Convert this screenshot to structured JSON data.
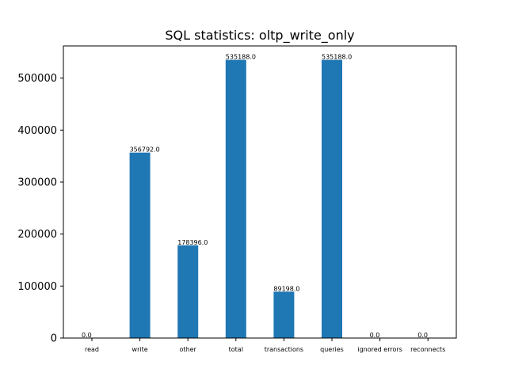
{
  "chart_data": {
    "type": "bar",
    "title": "SQL statistics: oltp_write_only",
    "xlabel": "",
    "ylabel": "",
    "categories": [
      "read",
      "write",
      "other",
      "total",
      "transactions",
      "queries",
      "ignored errors",
      "reconnects"
    ],
    "values": [
      0,
      356792,
      178396,
      535188,
      89198,
      535188,
      0,
      0
    ],
    "data_labels": [
      "0.0",
      "356792.0",
      "178396.0",
      "535188.0",
      "89198.0",
      "535188.0",
      "0.0",
      "0.0"
    ],
    "yticks": [
      0,
      100000,
      200000,
      300000,
      400000,
      500000
    ],
    "ytick_labels": [
      "0",
      "100000",
      "200000",
      "300000",
      "400000",
      "500000"
    ],
    "ylim": [
      0,
      561947
    ],
    "bar_color": "#1f77b4",
    "grid": false,
    "legend": "none"
  }
}
